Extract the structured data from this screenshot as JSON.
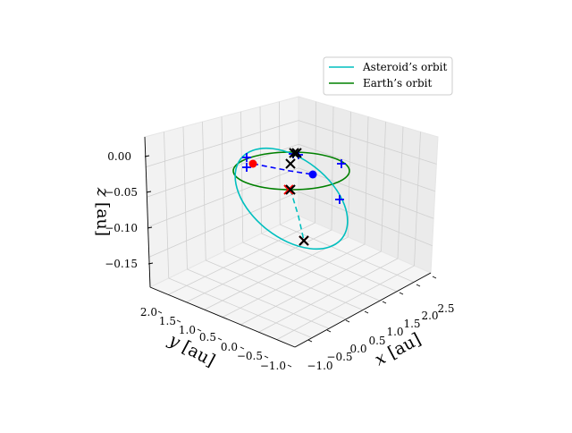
{
  "chart_data": {
    "type": "line",
    "projection": "3d",
    "grid": true,
    "legend_position": "top-right",
    "legend": [
      {
        "label": "Asteroid’s orbit",
        "color": "#00bfbf"
      },
      {
        "label": "Earth’s orbit",
        "color": "#008000"
      }
    ],
    "axes": {
      "x": {
        "label": "x [au]",
        "ticks": [
          "−1.0",
          "−0.5",
          "0.0",
          "0.5",
          "1.0",
          "1.5",
          "2.0",
          "2.5"
        ]
      },
      "y": {
        "label": "y [au]",
        "ticks": [
          "−1.0",
          "−0.5",
          "0.0",
          "0.5",
          "1.0",
          "1.5",
          "2.0"
        ]
      },
      "z": {
        "label": "z [au]",
        "ticks": [
          "−0.15",
          "−0.10",
          "−0.05",
          "0.00"
        ]
      }
    },
    "series": [
      {
        "name": "Asteroid’s orbit",
        "color": "#00bfbf",
        "style": "solid",
        "kind": "orbit"
      },
      {
        "name": "Earth’s orbit",
        "color": "#008000",
        "style": "solid",
        "kind": "orbit"
      }
    ],
    "markers": {
      "red_points": 1,
      "blue_points": 1,
      "blue_plus_markers": 6,
      "black_x_markers": 5,
      "red_x_markers": 2
    },
    "colors": {
      "asteroid": "#00bfbf",
      "earth": "#008000",
      "red": "#ff0000",
      "blue": "#0000ff",
      "black": "#000000"
    }
  }
}
